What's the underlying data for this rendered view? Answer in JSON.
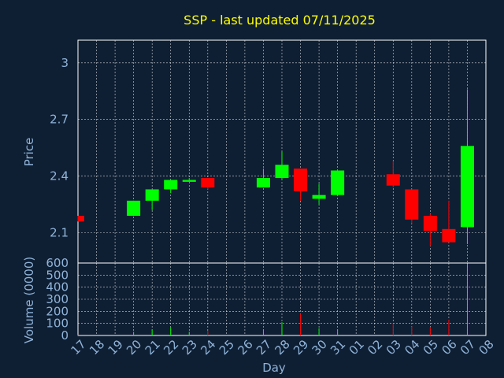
{
  "colors": {
    "background": "#0f1f33",
    "title": "#ffff00",
    "axis_text": "#8fb3d9",
    "frame": "#ffffff",
    "grid": "#ffffff",
    "up": "#00ff00",
    "down": "#ff0000"
  },
  "chart_data": [
    {
      "type": "candlestick",
      "title": "SSP - last updated 07/11/2025",
      "ylabel": "Price",
      "xlabel": "",
      "ylim": [
        1.94,
        3.12
      ],
      "yticks": [
        "2.1",
        "2.4",
        "2.7",
        "3"
      ],
      "grid": true,
      "candles": [
        {
          "day": "17",
          "open": 2.19,
          "close": 2.16,
          "high": 2.19,
          "low": 2.16
        },
        {
          "day": "20",
          "open": 2.19,
          "close": 2.27,
          "high": 2.27,
          "low": 2.19
        },
        {
          "day": "21",
          "open": 2.27,
          "close": 2.33,
          "high": 2.33,
          "low": 2.22
        },
        {
          "day": "22",
          "open": 2.33,
          "close": 2.38,
          "high": 2.38,
          "low": 2.31
        },
        {
          "day": "23",
          "open": 2.37,
          "close": 2.38,
          "high": 2.39,
          "low": 2.37
        },
        {
          "day": "24",
          "open": 2.39,
          "close": 2.34,
          "high": 2.39,
          "low": 2.33
        },
        {
          "day": "27",
          "open": 2.34,
          "close": 2.39,
          "high": 2.44,
          "low": 2.34
        },
        {
          "day": "28",
          "open": 2.39,
          "close": 2.46,
          "high": 2.53,
          "low": 2.38
        },
        {
          "day": "29",
          "open": 2.44,
          "close": 2.32,
          "high": 2.44,
          "low": 2.27
        },
        {
          "day": "30",
          "open": 2.28,
          "close": 2.3,
          "high": 2.36,
          "low": 2.25
        },
        {
          "day": "31",
          "open": 2.3,
          "close": 2.43,
          "high": 2.43,
          "low": 2.3
        },
        {
          "day": "03",
          "open": 2.41,
          "close": 2.35,
          "high": 2.48,
          "low": 2.34
        },
        {
          "day": "04",
          "open": 2.33,
          "close": 2.17,
          "high": 2.33,
          "low": 2.15
        },
        {
          "day": "05",
          "open": 2.19,
          "close": 2.11,
          "high": 2.2,
          "low": 2.03
        },
        {
          "day": "06",
          "open": 2.12,
          "close": 2.05,
          "high": 2.27,
          "low": 2.05
        },
        {
          "day": "07",
          "open": 2.13,
          "close": 2.56,
          "high": 2.86,
          "low": 2.04
        }
      ]
    },
    {
      "type": "bar",
      "ylabel": "Volume (0000)",
      "xlabel": "Day",
      "ylim": [
        0,
        600
      ],
      "yticks": [
        "0",
        "100",
        "200",
        "300",
        "400",
        "500",
        "600"
      ],
      "categories": [
        "17",
        "18",
        "19",
        "20",
        "21",
        "22",
        "23",
        "24",
        "25",
        "26",
        "27",
        "28",
        "29",
        "30",
        "31",
        "01",
        "02",
        "03",
        "04",
        "05",
        "06",
        "07",
        "08"
      ],
      "values": [
        3,
        0,
        0,
        30,
        50,
        70,
        30,
        40,
        0,
        0,
        50,
        110,
        180,
        60,
        50,
        0,
        0,
        100,
        75,
        70,
        130,
        590,
        0
      ],
      "bar_colors": [
        "down",
        "",
        "",
        "up",
        "up",
        "up",
        "up",
        "down",
        "",
        "",
        "up",
        "up",
        "down",
        "up",
        "up",
        "",
        "",
        "down",
        "down",
        "down",
        "down",
        "up",
        ""
      ],
      "grid": true
    }
  ]
}
